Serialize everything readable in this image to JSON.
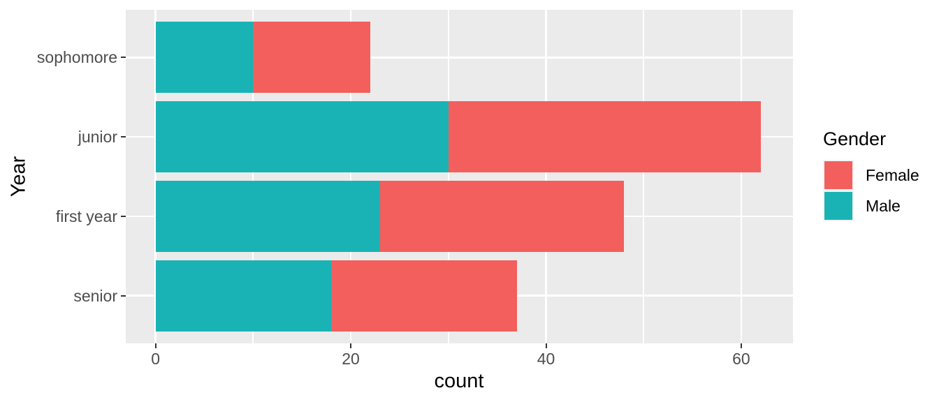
{
  "chart_data": {
    "type": "bar",
    "orientation": "horizontal",
    "stacked": true,
    "title": "",
    "xlabel": "count",
    "ylabel": "Year",
    "categories": [
      "sophomore",
      "junior",
      "first year",
      "senior"
    ],
    "series": [
      {
        "name": "Male",
        "color": "#1AB3B5",
        "values": [
          10,
          30,
          23,
          18
        ]
      },
      {
        "name": "Female",
        "color": "#F25F5C",
        "values": [
          12,
          32,
          25,
          19
        ]
      }
    ],
    "totals": [
      22,
      62,
      48,
      37
    ],
    "x_ticks": [
      0,
      20,
      40,
      60
    ],
    "x_minor_ticks": [
      10,
      30,
      50
    ],
    "xlim": [
      -3.05,
      65.3
    ],
    "grid": true,
    "panel_background": "#EBEBEB",
    "grid_color": "#FFFFFF",
    "tick_label_color": "#4D4D4D",
    "legend": {
      "title": "Gender",
      "position": "right",
      "entries": [
        {
          "label": "Female",
          "color": "#F25F5C"
        },
        {
          "label": "Male",
          "color": "#1AB3B5"
        }
      ]
    }
  }
}
